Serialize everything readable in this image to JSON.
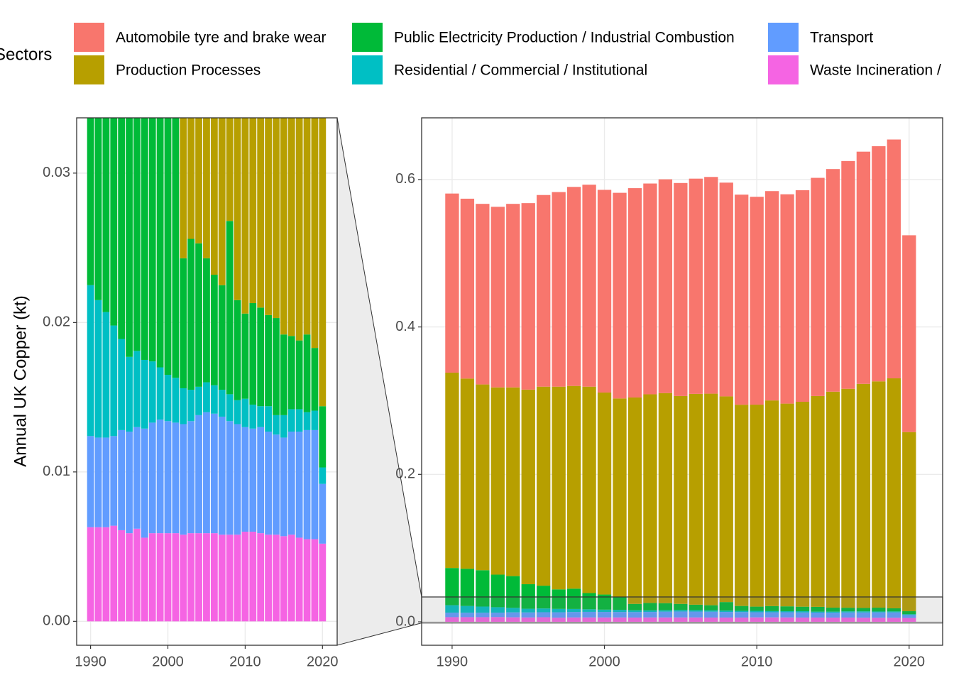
{
  "chart_data": {
    "type": "bar",
    "stacked": true,
    "legend_title": "Sectors",
    "y_label": "Annual UK Copper (kt)",
    "x": [
      1990,
      1991,
      1992,
      1993,
      1994,
      1995,
      1996,
      1997,
      1998,
      1999,
      2000,
      2001,
      2002,
      2003,
      2004,
      2005,
      2006,
      2007,
      2008,
      2009,
      2010,
      2011,
      2012,
      2013,
      2014,
      2015,
      2016,
      2017,
      2018,
      2019,
      2020
    ],
    "series": [
      {
        "name": "Automobile tyre and brake wear",
        "color": "#F8766D",
        "values": [
          0.243,
          0.244,
          0.245,
          0.245,
          0.249,
          0.253,
          0.26,
          0.264,
          0.27,
          0.274,
          0.275,
          0.279,
          0.284,
          0.286,
          0.29,
          0.289,
          0.292,
          0.294,
          0.29,
          0.285,
          0.282,
          0.284,
          0.284,
          0.287,
          0.296,
          0.302,
          0.309,
          0.315,
          0.319,
          0.324,
          0.267
        ]
      },
      {
        "name": "Production Processes",
        "color": "#B79F00",
        "values": [
          0.265,
          0.258,
          0.252,
          0.254,
          0.256,
          0.264,
          0.27,
          0.275,
          0.275,
          0.28,
          0.274,
          0.269,
          0.28,
          0.283,
          0.285,
          0.282,
          0.286,
          0.287,
          0.279,
          0.273,
          0.274,
          0.279,
          0.275,
          0.278,
          0.286,
          0.293,
          0.297,
          0.304,
          0.307,
          0.312,
          0.243
        ]
      },
      {
        "name": "Public Electricity Production / Industrial Combustion",
        "color": "#00BA38",
        "values": [
          0.0505,
          0.0505,
          0.0493,
          0.0442,
          0.0431,
          0.0333,
          0.0309,
          0.0265,
          0.0276,
          0.022,
          0.0205,
          0.0177,
          0.0087,
          0.0101,
          0.0096,
          0.0083,
          0.0074,
          0.007,
          0.0116,
          0.0067,
          0.0057,
          0.0068,
          0.0066,
          0.0061,
          0.0065,
          0.0054,
          0.0049,
          0.0046,
          0.0052,
          0.0042,
          0.0041
        ]
      },
      {
        "name": "Residential / Commercial / Institutional",
        "color": "#00BFC4",
        "values": [
          0.0101,
          0.0092,
          0.0084,
          0.0074,
          0.0061,
          0.005,
          0.0051,
          0.0046,
          0.0041,
          0.0035,
          0.0031,
          0.003,
          0.0024,
          0.0021,
          0.0019,
          0.002,
          0.0019,
          0.0018,
          0.0018,
          0.0016,
          0.0019,
          0.0016,
          0.0014,
          0.0017,
          0.0013,
          0.0015,
          0.0015,
          0.0015,
          0.0012,
          0.0013,
          0.0011
        ]
      },
      {
        "name": "Transport",
        "color": "#619CFF",
        "values": [
          0.0061,
          0.006,
          0.006,
          0.006,
          0.0067,
          0.0068,
          0.0068,
          0.0073,
          0.0074,
          0.0076,
          0.0075,
          0.0074,
          0.0074,
          0.0075,
          0.0079,
          0.0081,
          0.008,
          0.0079,
          0.0076,
          0.0074,
          0.007,
          0.0069,
          0.0071,
          0.0069,
          0.0067,
          0.0066,
          0.0069,
          0.0071,
          0.0073,
          0.0073,
          0.004
        ]
      },
      {
        "name": "Waste Incineration /",
        "color": "#F564E3",
        "values": [
          0.0063,
          0.0063,
          0.0063,
          0.0064,
          0.0061,
          0.0059,
          0.0062,
          0.0056,
          0.0059,
          0.0059,
          0.0059,
          0.0059,
          0.0058,
          0.0059,
          0.0059,
          0.0059,
          0.0059,
          0.0058,
          0.0058,
          0.0058,
          0.006,
          0.006,
          0.0059,
          0.0058,
          0.0058,
          0.0057,
          0.0058,
          0.0056,
          0.0055,
          0.0055,
          0.0052
        ]
      }
    ],
    "grid": true,
    "panels": [
      {
        "xlim": [
          1988.2,
          2021.9
        ],
        "ylim": [
          -0.0016,
          0.0337
        ],
        "xticks": [
          1990,
          2000,
          2010,
          2020
        ],
        "yticks": [
          {
            "value": 0,
            "label": "0.00"
          },
          0.01,
          0.02,
          0.03
        ]
      },
      {
        "xlim": [
          1988.0,
          2022.2
        ],
        "ylim": [
          -0.0318,
          0.6837
        ],
        "xticks": [
          1990,
          2000,
          2010,
          2020
        ],
        "yticks": [
          {
            "value": 0,
            "label": "0.0"
          },
          0.2,
          0.4,
          0.6
        ]
      }
    ]
  }
}
